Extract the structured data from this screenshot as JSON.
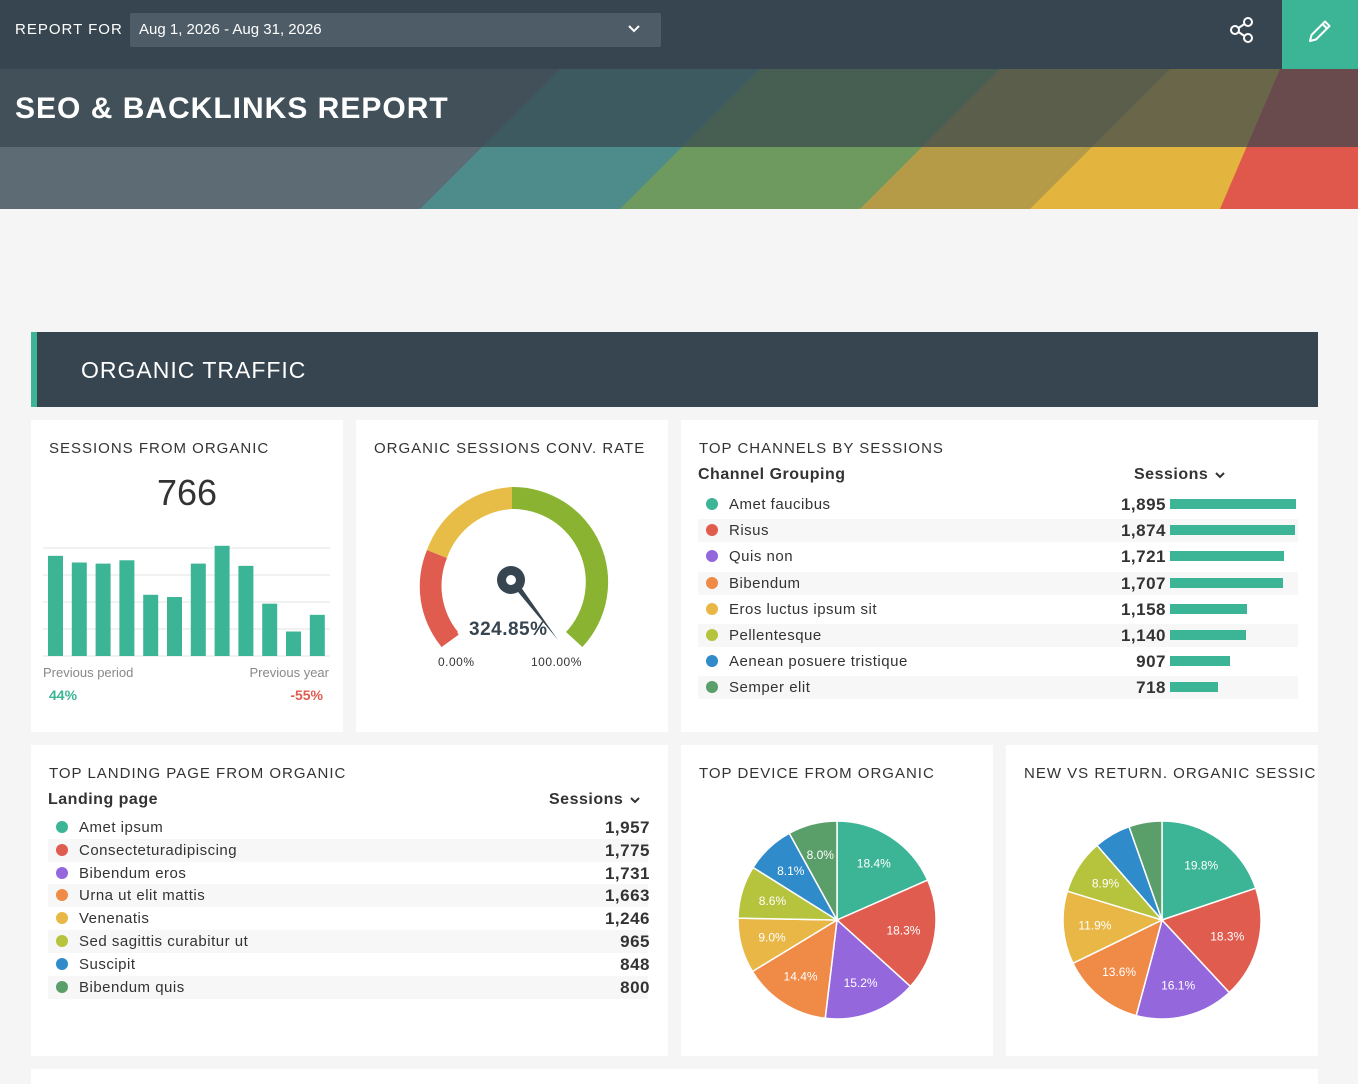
{
  "header": {
    "report_for_label": "REPORT FOR",
    "date_range": "Aug 1, 2026 - Aug 31, 2026"
  },
  "banner": {
    "title": "SEO & BACKLINKS REPORT"
  },
  "section": {
    "title": "ORGANIC TRAFFIC"
  },
  "sessions_card": {
    "title": "SESSIONS FROM ORGANIC",
    "value": "766",
    "prev_period_label": "Previous period",
    "prev_year_label": "Previous year",
    "prev_period_value": "44%",
    "prev_year_value": "-55%",
    "colors": {
      "bar": "#3cb596",
      "positive": "#3cb596",
      "negative": "#e05c4f"
    }
  },
  "gauge_card": {
    "title": "ORGANIC SESSIONS CONV. RATE",
    "value_label": "324.85%",
    "min_label": "0.00%",
    "max_label": "100.00%",
    "colors": [
      "#e05c4f",
      "#e8bd47",
      "#8ab332"
    ]
  },
  "channels_card": {
    "title": "TOP CHANNELS BY SESSIONS",
    "col_label": "Channel Grouping",
    "col_value": "Sessions",
    "rows": [
      {
        "label": "Amet faucibus",
        "value": "1,895",
        "color": "#3cb596"
      },
      {
        "label": "Risus",
        "value": "1,874",
        "color": "#e05c4f"
      },
      {
        "label": "Quis non",
        "value": "1,721",
        "color": "#9467dd"
      },
      {
        "label": "Bibendum",
        "value": "1,707",
        "color": "#ef8a47"
      },
      {
        "label": "Eros luctus ipsum sit",
        "value": "1,158",
        "color": "#e8b746"
      },
      {
        "label": "Pellentesque",
        "value": "1,140",
        "color": "#b6c43d"
      },
      {
        "label": "Aenean posuere tristique",
        "value": "907",
        "color": "#2f8bc9"
      },
      {
        "label": "Semper elit",
        "value": "718",
        "color": "#5a9e6a"
      }
    ]
  },
  "landing_card": {
    "title": "TOP LANDING PAGE FROM ORGANIC",
    "col_label": "Landing page",
    "col_value": "Sessions",
    "rows": [
      {
        "label": "Amet ipsum",
        "value": "1,957",
        "color": "#3cb596"
      },
      {
        "label": "Consecteturadipiscing",
        "value": "1,775",
        "color": "#e05c4f"
      },
      {
        "label": "Bibendum eros",
        "value": "1,731",
        "color": "#9467dd"
      },
      {
        "label": "Urna ut elit mattis",
        "value": "1,663",
        "color": "#ef8a47"
      },
      {
        "label": "Venenatis",
        "value": "1,246",
        "color": "#e8b746"
      },
      {
        "label": "Sed sagittis curabitur ut",
        "value": "965",
        "color": "#b6c43d"
      },
      {
        "label": "Suscipit",
        "value": "848",
        "color": "#2f8bc9"
      },
      {
        "label": "Bibendum quis",
        "value": "800",
        "color": "#5a9e6a"
      }
    ]
  },
  "device_card": {
    "title": "TOP DEVICE FROM ORGANIC"
  },
  "newret_card": {
    "title": "NEW VS RETURN. ORGANIC SESSIC"
  },
  "chart_data": [
    {
      "type": "bar",
      "values": [
        90,
        84,
        83,
        86,
        55,
        53,
        83,
        99,
        81,
        47,
        22,
        37
      ],
      "ylim": [
        0,
        100
      ]
    },
    {
      "type": "pie",
      "categories": [
        "",
        "",
        "",
        "",
        "",
        "",
        "",
        ""
      ],
      "values": [
        18.4,
        18.3,
        15.2,
        14.4,
        9.0,
        8.6,
        8.1,
        8.0
      ],
      "labels": [
        "18.4%",
        "18.3%",
        "15.2%",
        "14.4%",
        "9.0%",
        "8.6%",
        "8.1%",
        "8.0%"
      ],
      "colors": [
        "#3cb596",
        "#e05c4f",
        "#9467dd",
        "#ef8a47",
        "#e8b746",
        "#b6c43d",
        "#2f8bc9",
        "#5a9e6a"
      ]
    },
    {
      "type": "pie",
      "categories": [
        "",
        "",
        "",
        "",
        "",
        "",
        "",
        ""
      ],
      "values": [
        19.8,
        18.3,
        16.1,
        13.6,
        11.9,
        8.9,
        6.0,
        5.4
      ],
      "labels": [
        "19.8%",
        "18.3%",
        "16.1%",
        "13.6%",
        "11.9%",
        "8.9%",
        "",
        ""
      ],
      "colors": [
        "#3cb596",
        "#e05c4f",
        "#9467dd",
        "#ef8a47",
        "#e8b746",
        "#b6c43d",
        "#2f8bc9",
        "#5a9e6a"
      ]
    }
  ]
}
